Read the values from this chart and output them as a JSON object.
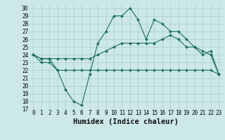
{
  "xlabel": "Humidex (Indice chaleur)",
  "ylabel": "",
  "bg_color": "#cce8e8",
  "grid_color": "#aacccc",
  "line_color": "#1a6b60",
  "x": [
    0,
    1,
    2,
    3,
    4,
    5,
    6,
    7,
    8,
    9,
    10,
    11,
    12,
    13,
    14,
    15,
    16,
    17,
    18,
    19,
    20,
    21,
    22,
    23
  ],
  "line1": [
    24,
    23,
    23,
    22,
    19.5,
    18,
    17.5,
    21.5,
    25.5,
    27,
    29,
    29,
    30,
    28.5,
    26,
    28.5,
    28,
    27,
    27,
    26,
    25,
    24,
    24.5,
    21.5
  ],
  "line2": [
    24,
    23.5,
    23.5,
    23.5,
    23.5,
    23.5,
    23.5,
    23.5,
    24,
    24.5,
    25,
    25.5,
    25.5,
    25.5,
    25.5,
    25.5,
    26,
    26.5,
    26,
    25,
    25,
    24.5,
    24,
    21.5
  ],
  "line3": [
    24,
    23.5,
    23.5,
    22,
    22,
    22,
    22,
    22,
    22,
    22,
    22,
    22,
    22,
    22,
    22,
    22,
    22,
    22,
    22,
    22,
    22,
    22,
    22,
    21.5
  ],
  "ylim": [
    17,
    30.5
  ],
  "yticks": [
    17,
    18,
    19,
    20,
    21,
    22,
    23,
    24,
    25,
    26,
    27,
    28,
    29,
    30
  ],
  "xticks": [
    0,
    1,
    2,
    3,
    4,
    5,
    6,
    7,
    8,
    9,
    10,
    11,
    12,
    13,
    14,
    15,
    16,
    17,
    18,
    19,
    20,
    21,
    22,
    23
  ],
  "tick_fontsize": 5.5,
  "xlabel_fontsize": 7.5
}
